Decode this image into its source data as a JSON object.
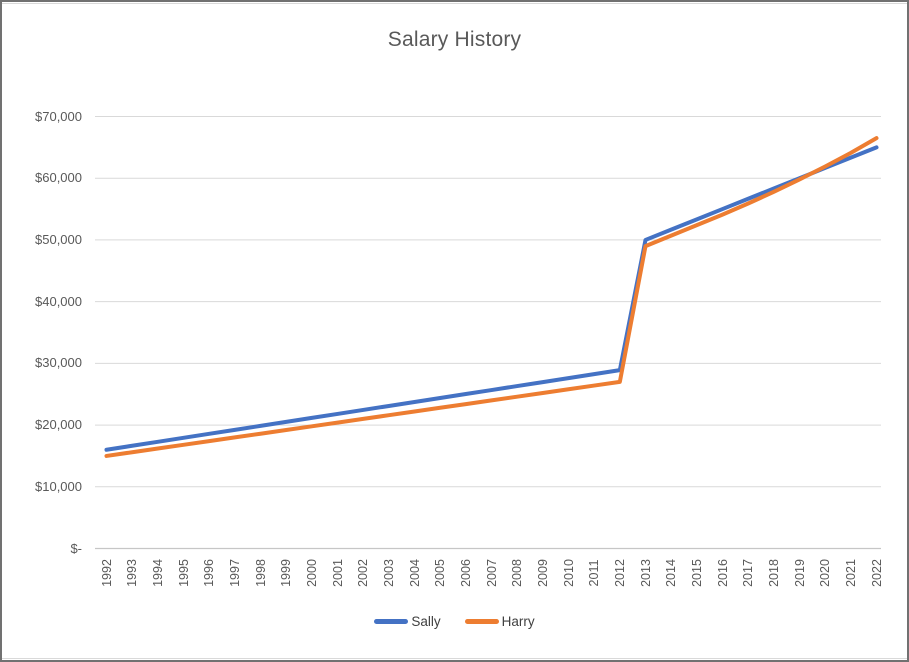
{
  "window": {
    "background": "#ffffff",
    "border_color": "#717171",
    "inner_border_color": "#d9d9d9"
  },
  "chart_data": {
    "type": "line",
    "title": "Salary History",
    "xlabel": "",
    "ylabel": "",
    "grid": "horizontal-on",
    "legend_position": "bottom-center",
    "categories": [
      "1992",
      "1993",
      "1994",
      "1995",
      "1996",
      "1997",
      "1998",
      "1999",
      "2000",
      "2001",
      "2002",
      "2003",
      "2004",
      "2005",
      "2006",
      "2007",
      "2008",
      "2009",
      "2010",
      "2011",
      "2012",
      "2013",
      "2014",
      "2015",
      "2016",
      "2017",
      "2018",
      "2019",
      "2020",
      "2021",
      "2022"
    ],
    "series": [
      {
        "name": "Sally",
        "color": "#4472C4",
        "values": [
          16000,
          16645,
          17290,
          17935,
          18580,
          19225,
          19870,
          20515,
          21160,
          21805,
          22450,
          23095,
          23740,
          24385,
          25030,
          25675,
          26320,
          26965,
          27610,
          28255,
          28900,
          50000,
          51667,
          53333,
          55000,
          56667,
          58333,
          60000,
          61667,
          63333,
          65000
        ]
      },
      {
        "name": "Harry",
        "color": "#ED7D31",
        "values": [
          15000,
          15600,
          16200,
          16800,
          17400,
          18000,
          18600,
          19200,
          19800,
          20400,
          21000,
          21600,
          22200,
          22800,
          23400,
          24000,
          24600,
          25200,
          25800,
          26400,
          27000,
          49000,
          50700,
          52400,
          54100,
          55900,
          57800,
          59800,
          61900,
          64100,
          66500
        ]
      }
    ],
    "y_axis": {
      "ylim": [
        0,
        70000
      ],
      "ticks": [
        {
          "label": "$-",
          "value": 0
        },
        {
          "label": "$10,000",
          "value": 10000
        },
        {
          "label": "$20,000",
          "value": 20000
        },
        {
          "label": "$30,000",
          "value": 30000
        },
        {
          "label": "$40,000",
          "value": 40000
        },
        {
          "label": "$50,000",
          "value": 50000
        },
        {
          "label": "$60,000",
          "value": 60000
        },
        {
          "label": "$70,000",
          "value": 70000
        }
      ]
    },
    "colors": {
      "gridline": "#d9d9d9",
      "axis_line": "#c6c6c6",
      "title_text": "#595959",
      "tick_text": "#595959",
      "legend_text": "#404040"
    }
  }
}
